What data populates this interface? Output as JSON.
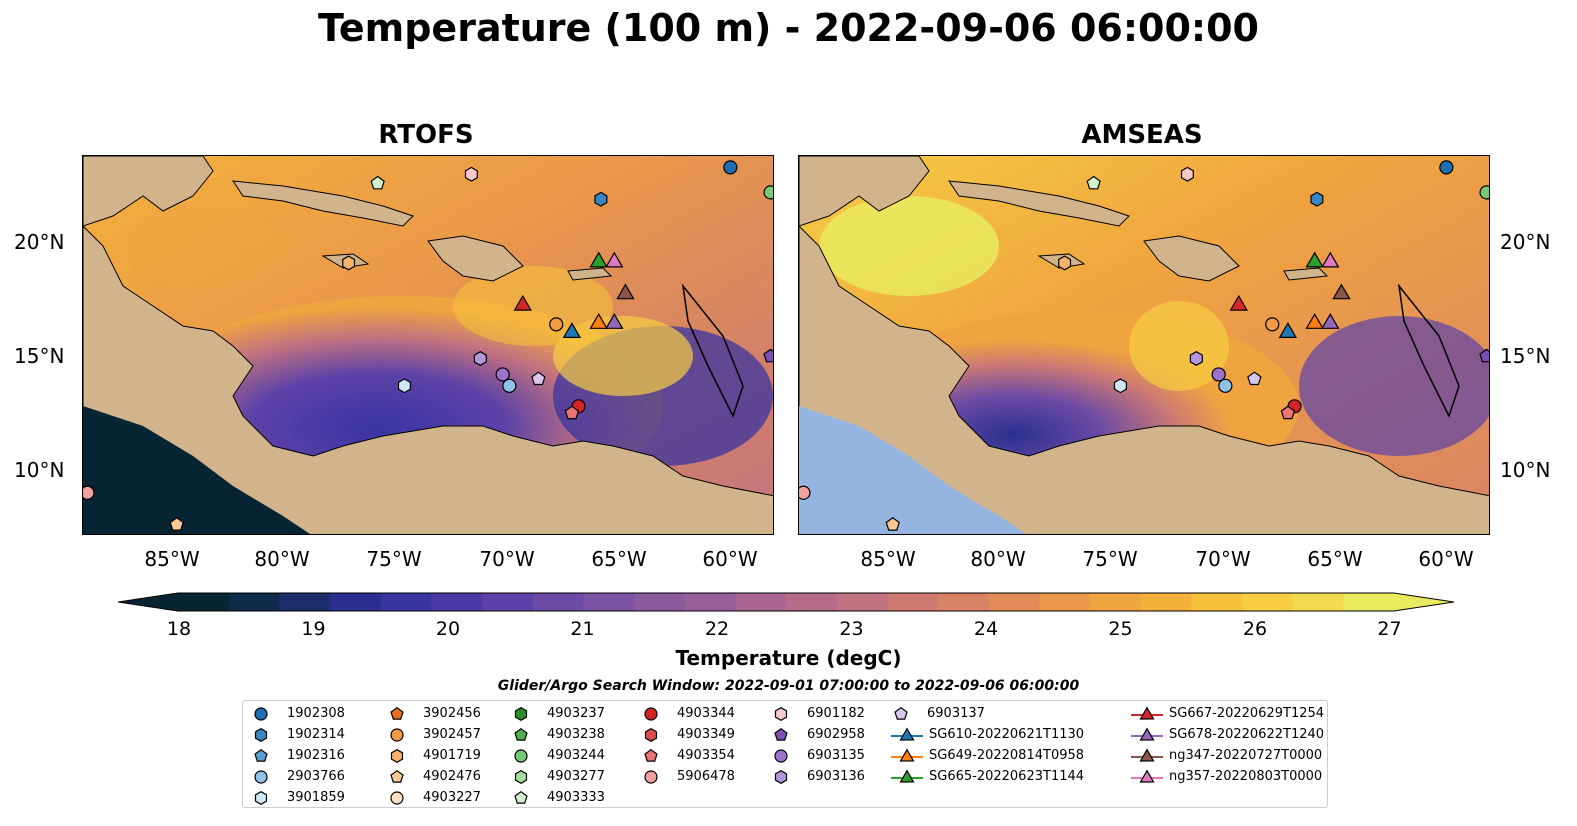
{
  "title": "Temperature (100 m) - 2022-09-06 06:00:00",
  "panels": [
    {
      "title": "RTOFS"
    },
    {
      "title": "AMSEAS"
    }
  ],
  "lon_labels": [
    "85°W",
    "80°W",
    "75°W",
    "70°W",
    "65°W",
    "60°W"
  ],
  "lat_labels": [
    "20°N",
    "15°N",
    "10°N"
  ],
  "colorbar": {
    "label": "Temperature (degC)",
    "ticks": [
      "18",
      "19",
      "20",
      "21",
      "22",
      "23",
      "24",
      "25",
      "26",
      "27"
    ],
    "colors": [
      "#062432",
      "#102a4a",
      "#1b2d6b",
      "#2a2f8e",
      "#3a34a0",
      "#4b3aa6",
      "#5c42a8",
      "#6c4aa6",
      "#7b52a3",
      "#8a5a9e",
      "#995f98",
      "#a86591",
      "#b66b89",
      "#c3727f",
      "#ce7a73",
      "#d98366",
      "#e28d58",
      "#ea984a",
      "#f0a43f",
      "#f4b13a",
      "#f6bf3c",
      "#f6cd43",
      "#f3db4f",
      "#e9ea5e"
    ]
  },
  "search_window": "Glider/Argo Search Window: 2022-09-01 07:00:00 to 2022-09-06 06:00:00",
  "legend": {
    "columns": [
      [
        {
          "label": "1902308",
          "marker": "circle",
          "color": "#1f6eb4"
        },
        {
          "label": "1902314",
          "marker": "hexagon",
          "color": "#3a86c4"
        },
        {
          "label": "1902316",
          "marker": "pentagon",
          "color": "#5a9fd2"
        },
        {
          "label": "2903766",
          "marker": "circle",
          "color": "#8ec2e6"
        },
        {
          "label": "3901859",
          "marker": "hexagon",
          "color": "#cfe6f6"
        }
      ],
      [
        {
          "label": "3902456",
          "marker": "pentagon",
          "color": "#e8701a"
        },
        {
          "label": "3902457",
          "marker": "circle",
          "color": "#f39a45"
        },
        {
          "label": "4901719",
          "marker": "hexagon",
          "color": "#f6b26b"
        },
        {
          "label": "4902476",
          "marker": "pentagon",
          "color": "#f9c993"
        },
        {
          "label": "4903227",
          "marker": "circle",
          "color": "#fde0c0"
        }
      ],
      [
        {
          "label": "4903237",
          "marker": "hexagon",
          "color": "#2a8f2a"
        },
        {
          "label": "4903238",
          "marker": "pentagon",
          "color": "#4fae4f"
        },
        {
          "label": "4903244",
          "marker": "circle",
          "color": "#77c877"
        },
        {
          "label": "4903277",
          "marker": "hexagon",
          "color": "#a6dea0"
        },
        {
          "label": "4903333",
          "marker": "pentagon",
          "color": "#d3f2cc"
        }
      ],
      [
        {
          "label": "4903344",
          "marker": "circle",
          "color": "#d42424"
        },
        {
          "label": "4903349",
          "marker": "hexagon",
          "color": "#e24b4b"
        },
        {
          "label": "4903354",
          "marker": "pentagon",
          "color": "#ec7474"
        },
        {
          "label": "5906478",
          "marker": "circle",
          "color": "#f3a0a0"
        }
      ],
      [
        {
          "label": "6901182",
          "marker": "hexagon",
          "color": "#f7c8c8"
        },
        {
          "label": "6902958",
          "marker": "pentagon",
          "color": "#7b4fb5"
        },
        {
          "label": "6903135",
          "marker": "circle",
          "color": "#9b72cc"
        },
        {
          "label": "6903136",
          "marker": "hexagon",
          "color": "#b596dc"
        }
      ],
      [
        {
          "label": "6903137",
          "marker": "pentagon",
          "color": "#d8c4ef"
        },
        {
          "label": "SG610-20220621T1130",
          "marker": "triangle-line",
          "color": "#1f77b4"
        },
        {
          "label": "SG649-20220814T0958",
          "marker": "triangle-line",
          "color": "#ff7f0e"
        },
        {
          "label": "SG665-20220623T1144",
          "marker": "triangle-line",
          "color": "#2ca02c"
        }
      ],
      [
        {
          "label": "SG667-20220629T1254",
          "marker": "triangle-line",
          "color": "#d62728"
        },
        {
          "label": "SG678-20220622T1240",
          "marker": "triangle-line",
          "color": "#9467bd"
        },
        {
          "label": "ng347-20220727T0000",
          "marker": "triangle-line",
          "color": "#8c564b"
        },
        {
          "label": "ng357-20220803T0000",
          "marker": "triangle-line",
          "color": "#e377c2"
        }
      ]
    ]
  },
  "map_colors": {
    "land": "#d2b48c",
    "outside_ocean": "#95b5e0",
    "rtofs_deep": "#062432"
  },
  "observations": [
    {
      "id": "1902308",
      "lon": -60.0,
      "lat": 23.3
    },
    {
      "id": "1902314",
      "lon": -65.8,
      "lat": 21.9
    },
    {
      "id": "6901182",
      "lon": -71.6,
      "lat": 23.0
    },
    {
      "id": "4903333",
      "lon": -75.8,
      "lat": 22.6
    },
    {
      "id": "4901719",
      "lon": -77.1,
      "lat": 19.1
    },
    {
      "id": "4903244",
      "lon": -58.2,
      "lat": 22.2
    },
    {
      "id": "6902958",
      "lon": -58.2,
      "lat": 15.0
    },
    {
      "id": "6903136",
      "lon": -71.2,
      "lat": 14.9
    },
    {
      "id": "6903135",
      "lon": -70.2,
      "lat": 14.2
    },
    {
      "id": "2903766",
      "lon": -69.9,
      "lat": 13.7
    },
    {
      "id": "6903137",
      "lon": -68.6,
      "lat": 14.0
    },
    {
      "id": "3901859",
      "lon": -74.6,
      "lat": 13.7
    },
    {
      "id": "3902457",
      "lon": -67.8,
      "lat": 16.4
    },
    {
      "id": "4903344",
      "lon": -66.8,
      "lat": 12.8
    },
    {
      "id": "4903354",
      "lon": -67.1,
      "lat": 12.5
    },
    {
      "id": "5906478",
      "lon": -88.8,
      "lat": 9.0
    },
    {
      "id": "4902476",
      "lon": -84.8,
      "lat": 7.6
    }
  ],
  "gliders": [
    {
      "id": "SG667-20220629T1254",
      "lon": -69.3,
      "lat": 17.3
    },
    {
      "id": "SG610-20220621T1130",
      "lon": -67.1,
      "lat": 16.1
    },
    {
      "id": "SG649-20220814T0958",
      "lon": -65.9,
      "lat": 16.5
    },
    {
      "id": "SG678-20220622T1240",
      "lon": -65.2,
      "lat": 16.5
    },
    {
      "id": "SG665-20220623T1144",
      "lon": -65.9,
      "lat": 19.2
    },
    {
      "id": "ng357-20220803T0000",
      "lon": -65.2,
      "lat": 19.2
    },
    {
      "id": "ng347-20220727T0000",
      "lon": -64.7,
      "lat": 17.8
    }
  ]
}
